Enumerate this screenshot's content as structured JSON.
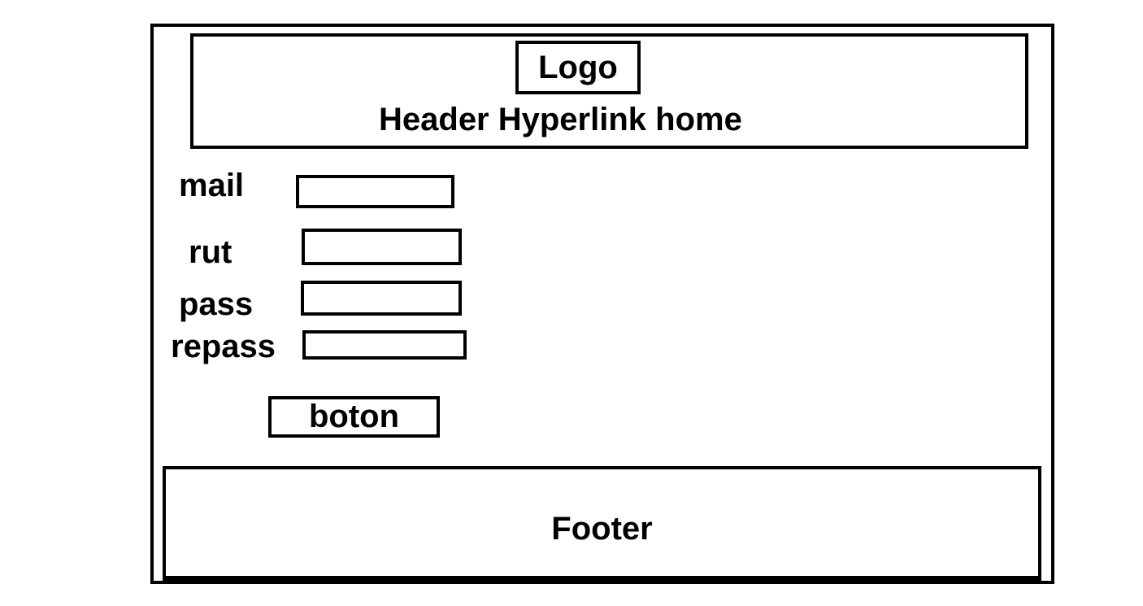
{
  "header": {
    "logo": "Logo",
    "link": "Header Hyperlink home"
  },
  "form": {
    "mail_label": "mail",
    "rut_label": "rut",
    "pass_label": "pass",
    "repass_label": "repass",
    "mail_value": "",
    "rut_value": "",
    "pass_value": "",
    "repass_value": "",
    "button_label": "boton"
  },
  "footer": {
    "text": "Footer"
  }
}
